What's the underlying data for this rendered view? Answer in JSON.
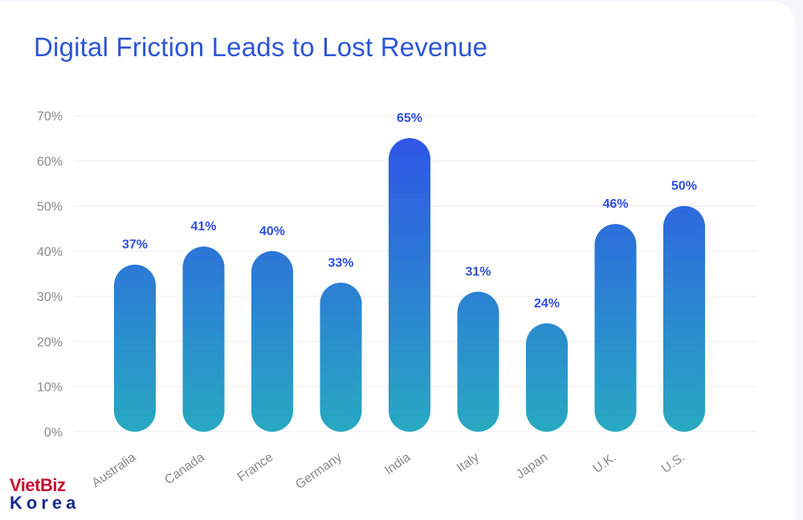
{
  "chart_data": {
    "type": "bar",
    "title": "Digital Friction Leads to Lost Revenue",
    "categories": [
      "Australia",
      "Canada",
      "France",
      "Germany",
      "India",
      "Italy",
      "Japan",
      "U.K.",
      "U.S."
    ],
    "values": [
      37,
      41,
      40,
      33,
      65,
      31,
      24,
      46,
      50
    ],
    "value_labels": [
      "37%",
      "41%",
      "40%",
      "33%",
      "65%",
      "31%",
      "24%",
      "46%",
      "50%"
    ],
    "y_ticks": [
      "0%",
      "10%",
      "20%",
      "30%",
      "40%",
      "50%",
      "60%",
      "70%"
    ],
    "ylim": [
      0,
      70
    ],
    "grid": true,
    "colors": {
      "bar_top": "#2f55e6",
      "bar_bottom": "#28a9c1",
      "label": "#2f4fe0",
      "title": "#2d55d6"
    }
  },
  "watermark": {
    "line1": "VietBiz",
    "line2": "Korea"
  }
}
